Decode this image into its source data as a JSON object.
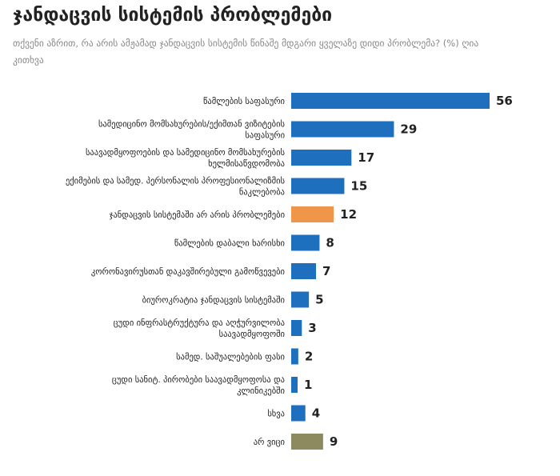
{
  "title": "ჯანდაცვის სისტემის პრობლემები",
  "subtitle": "თქვენი აზრით, რა არის ამჟამად ჯანდაცვის სისტემის წინაშე მდგარი ყველაზე დიდი პრობლემა? (%) ღია კითხვა",
  "chart_data": {
    "type": "bar",
    "orientation": "horizontal",
    "unit": "%",
    "categories": [
      [
        "წამლების საფასური"
      ],
      [
        "სამედიცინო მომსახურების/ექიმთან ვიზიტების",
        "საფასური"
      ],
      [
        "საავადმყოფოების და სამედიცინო მომსახურების",
        "ხელმისაწვდომობა"
      ],
      [
        "ექიმების და სამედ. პერსონალის პროფესიონალიზმის",
        "ნაკლებობა"
      ],
      [
        "ჯანდაცვის სისტემაში არ არის პრობლემები"
      ],
      [
        "წამლების დაბალი ხარისხი"
      ],
      [
        "კორონავირუსთან დაკავშირებული გამოწვევები"
      ],
      [
        "ბიუროკრატია ჯანდაცვის სისტემაში"
      ],
      [
        "ცუდი ინფრასტრუქტურა და აღჭურვილობა",
        "საავადმყოფოში"
      ],
      [
        "სამედ. საშუალებების ფასი"
      ],
      [
        "ცუდი სანიტ. პირობები საავადმყოფოსა და",
        "კლინიკებში"
      ],
      [
        "სხვა"
      ],
      [
        "არ ვიცი"
      ]
    ],
    "values": [
      56,
      29,
      17,
      15,
      12,
      8,
      7,
      5,
      3,
      2,
      1,
      4,
      9
    ],
    "colors": [
      "#1f6fbf",
      "#1f6fbf",
      "#1f6fbf",
      "#1f6fbf",
      "#f0964a",
      "#1f6fbf",
      "#1f6fbf",
      "#1f6fbf",
      "#1f6fbf",
      "#1f6fbf",
      "#1f6fbf",
      "#1f6fbf",
      "#8c8a5e"
    ],
    "xlim": [
      0,
      56
    ],
    "grid": false,
    "legend": "none"
  }
}
